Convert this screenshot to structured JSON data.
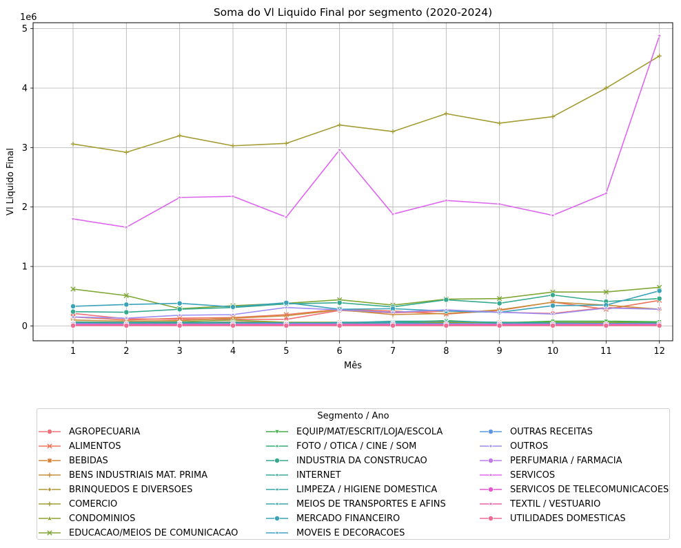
{
  "chart_data": {
    "type": "line",
    "title": "Soma do Vl Liquido Final por segmento (2020-2024)",
    "xlabel": "Mês",
    "ylabel": "Vl Liquido Final",
    "y_scale_label": "1e6",
    "x": [
      1,
      2,
      3,
      4,
      5,
      6,
      7,
      8,
      9,
      10,
      11,
      12
    ],
    "xlim": [
      0.25,
      12.25
    ],
    "ylim": [
      -250000,
      5100000
    ],
    "yticks": [
      0,
      1000000,
      2000000,
      3000000,
      4000000,
      5000000
    ],
    "ytick_labels": [
      "0",
      "1",
      "2",
      "3",
      "4",
      "5"
    ],
    "grid": true,
    "legend_title": "Segmento / Ano",
    "legend_position": "bottom",
    "series": [
      {
        "name": "AGROPECUARIA",
        "color": "#f0707a",
        "marker": "circle",
        "values": [
          210000,
          120000,
          110000,
          110000,
          110000,
          260000,
          220000,
          250000,
          230000,
          210000,
          310000,
          280000
        ]
      },
      {
        "name": "ALIMENTOS",
        "color": "#ec7357",
        "marker": "x",
        "values": [
          150000,
          100000,
          130000,
          140000,
          190000,
          280000,
          250000,
          200000,
          260000,
          400000,
          280000,
          430000
        ]
      },
      {
        "name": "BEBIDAS",
        "color": "#d9833a",
        "marker": "square",
        "values": [
          50000,
          40000,
          50000,
          70000,
          60000,
          60000,
          60000,
          70000,
          60000,
          60000,
          50000,
          60000
        ]
      },
      {
        "name": "BENS INDUSTRIAIS MAT. PRIMA",
        "color": "#c88e3c",
        "marker": "plus",
        "values": [
          100000,
          80000,
          90000,
          130000,
          170000,
          270000,
          190000,
          210000,
          270000,
          400000,
          350000,
          280000
        ]
      },
      {
        "name": "BRINQUEDOS E DIVERSOES",
        "color": "#b29535",
        "marker": "diamond",
        "values": [
          20000,
          20000,
          20000,
          20000,
          20000,
          20000,
          20000,
          20000,
          20000,
          20000,
          20000,
          20000
        ]
      },
      {
        "name": "COMERCIO",
        "color": "#a39b32",
        "marker": "plus",
        "values": [
          3060000,
          2920000,
          3200000,
          3030000,
          3070000,
          3380000,
          3270000,
          3570000,
          3410000,
          3520000,
          4000000,
          4540000
        ]
      },
      {
        "name": "CONDOMINIOS",
        "color": "#92a033",
        "marker": "triangle",
        "values": [
          70000,
          60000,
          70000,
          100000,
          60000,
          60000,
          60000,
          60000,
          60000,
          60000,
          60000,
          60000
        ]
      },
      {
        "name": "EDUCACAO/MEIOS DE COMUNICACAO",
        "color": "#7ea734",
        "marker": "x",
        "values": [
          620000,
          510000,
          290000,
          340000,
          380000,
          440000,
          350000,
          450000,
          460000,
          570000,
          570000,
          650000
        ]
      },
      {
        "name": "EQUIP/MAT/ESCRIT/LOJA/ESCOLA",
        "color": "#3fae45",
        "marker": "triangle-down",
        "values": [
          50000,
          40000,
          50000,
          60000,
          50000,
          50000,
          60000,
          90000,
          50000,
          80000,
          80000,
          70000
        ]
      },
      {
        "name": "FOTO / OTICA / CINE / SOM",
        "color": "#34ad73",
        "marker": "star",
        "values": [
          30000,
          30000,
          30000,
          30000,
          30000,
          30000,
          30000,
          30000,
          30000,
          30000,
          30000,
          30000
        ]
      },
      {
        "name": "INDUSTRIA DA CONSTRUCAO",
        "color": "#35aa8f",
        "marker": "circle",
        "values": [
          240000,
          230000,
          280000,
          310000,
          370000,
          390000,
          320000,
          440000,
          380000,
          520000,
          410000,
          460000
        ]
      },
      {
        "name": "INTERNET",
        "color": "#36a79b",
        "marker": "star",
        "values": [
          40000,
          40000,
          40000,
          40000,
          40000,
          40000,
          40000,
          40000,
          40000,
          40000,
          40000,
          40000
        ]
      },
      {
        "name": "LIMPEZA / HIGIENE DOMESTICA",
        "color": "#37a5a5",
        "marker": "star",
        "values": [
          60000,
          60000,
          60000,
          60000,
          50000,
          50000,
          80000,
          80000,
          60000,
          50000,
          40000,
          50000
        ]
      },
      {
        "name": "MEIOS DE TRANSPORTES E AFINS",
        "color": "#38a3ae",
        "marker": "star",
        "values": [
          20000,
          20000,
          20000,
          20000,
          30000,
          60000,
          60000,
          40000,
          30000,
          40000,
          40000,
          40000
        ]
      },
      {
        "name": "MERCADO FINANCEIRO",
        "color": "#3aa2b8",
        "marker": "circle",
        "values": [
          330000,
          360000,
          380000,
          320000,
          390000,
          280000,
          290000,
          250000,
          230000,
          340000,
          350000,
          590000
        ]
      },
      {
        "name": "MOVEIS E DECORACOES",
        "color": "#3e9fcd",
        "marker": "star",
        "values": [
          30000,
          30000,
          30000,
          30000,
          20000,
          30000,
          30000,
          20000,
          30000,
          30000,
          30000,
          30000
        ]
      },
      {
        "name": "OUTRAS RECEITAS",
        "color": "#5a97e6",
        "marker": "circle",
        "values": [
          40000,
          30000,
          30000,
          30000,
          40000,
          30000,
          30000,
          30000,
          30000,
          30000,
          30000,
          30000
        ]
      },
      {
        "name": "OUTROS",
        "color": "#9b8cf3",
        "marker": "star",
        "values": [
          150000,
          130000,
          180000,
          190000,
          310000,
          270000,
          230000,
          270000,
          230000,
          200000,
          300000,
          280000
        ]
      },
      {
        "name": "PERFUMARIA / FARMACIA",
        "color": "#c07aee",
        "marker": "circle",
        "values": [
          30000,
          30000,
          30000,
          30000,
          30000,
          30000,
          30000,
          30000,
          30000,
          30000,
          30000,
          30000
        ]
      },
      {
        "name": "SERVICOS",
        "color": "#dd66ee",
        "marker": "star",
        "values": [
          1800000,
          1660000,
          2160000,
          2180000,
          1830000,
          2960000,
          1880000,
          2110000,
          2050000,
          1860000,
          2230000,
          4880000
        ]
      },
      {
        "name": "SERVICOS DE TELECOMUNICACOES",
        "color": "#e458d0",
        "marker": "circle",
        "values": [
          10000,
          10000,
          10000,
          10000,
          10000,
          10000,
          10000,
          10000,
          10000,
          10000,
          10000,
          10000
        ]
      },
      {
        "name": "TEXTIL / VESTUARIO",
        "color": "#ee5fa8",
        "marker": "star",
        "values": [
          20000,
          20000,
          20000,
          20000,
          20000,
          20000,
          20000,
          20000,
          20000,
          20000,
          20000,
          20000
        ]
      },
      {
        "name": "UTILIDADES DOMESTICAS",
        "color": "#ef6c92",
        "marker": "circle",
        "values": [
          5000,
          5000,
          5000,
          5000,
          5000,
          5000,
          5000,
          5000,
          5000,
          5000,
          5000,
          5000
        ]
      }
    ]
  }
}
